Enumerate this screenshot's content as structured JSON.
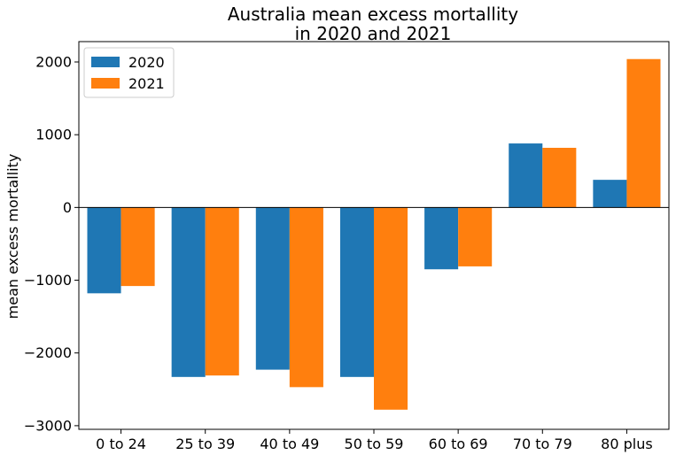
{
  "chart_data": {
    "type": "bar",
    "title": [
      "Australia mean excess mortallity",
      "in 2020 and 2021"
    ],
    "xlabel": "",
    "ylabel": "mean excess mortallity",
    "categories": [
      "0 to 24",
      "25 to 39",
      "40 to 49",
      "50 to 59",
      "60 to 69",
      "70 to 79",
      "80 plus"
    ],
    "series": [
      {
        "name": "2020",
        "color": "#1f77b4",
        "values": [
          -1180,
          -2330,
          -2230,
          -2330,
          -850,
          880,
          380
        ]
      },
      {
        "name": "2021",
        "color": "#ff7f0e",
        "values": [
          -1080,
          -2310,
          -2470,
          -2780,
          -810,
          820,
          2040
        ]
      }
    ],
    "ylim": [
      -3050,
      2280
    ],
    "yticks": [
      -3000,
      -2000,
      -1000,
      0,
      1000,
      2000
    ],
    "legend_position": "top-left",
    "grid": false,
    "zero_line": true
  }
}
